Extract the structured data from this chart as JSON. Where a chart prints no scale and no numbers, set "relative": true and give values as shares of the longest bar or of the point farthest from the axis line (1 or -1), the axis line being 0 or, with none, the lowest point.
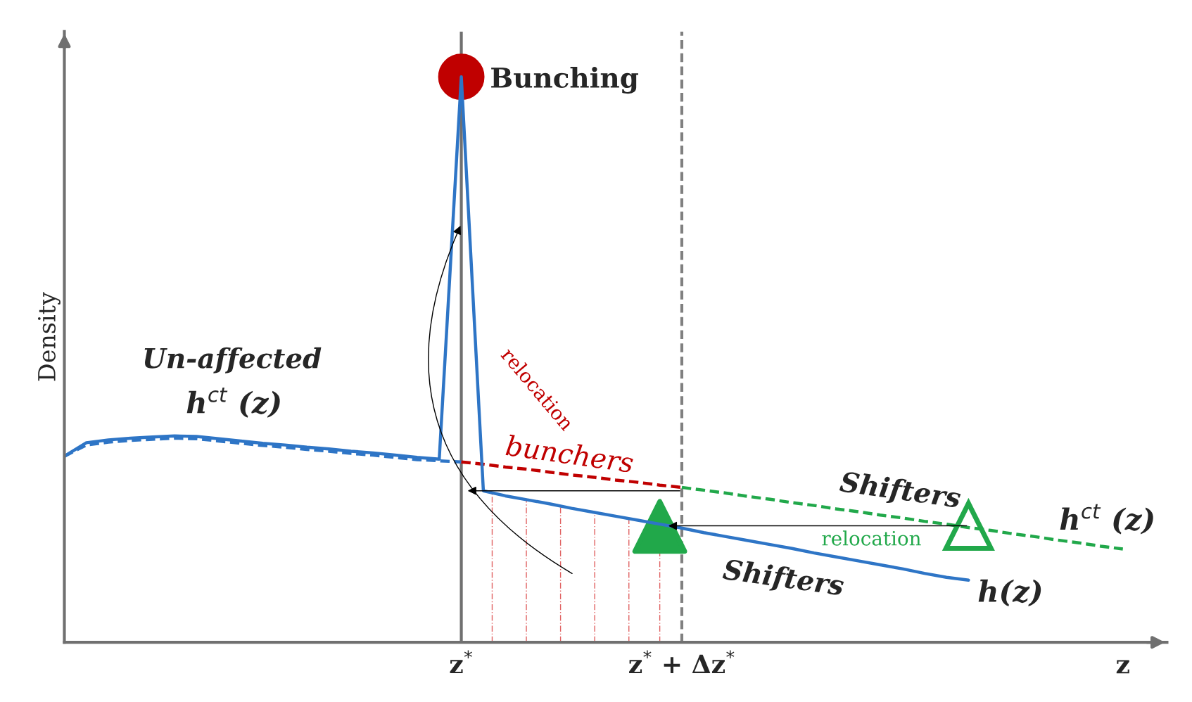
{
  "chart_data": {
    "type": "line",
    "relative": true,
    "ylabel": "Density",
    "categories": [
      null,
      null,
      null,
      null,
      null,
      null,
      null,
      null,
      null,
      null,
      null,
      null,
      null,
      null,
      null,
      null,
      null,
      null,
      "z$^{*}$",
      null,
      null,
      null,
      null,
      null,
      null,
      null,
      null,
      null,
      "z$^{*}$ + Δz$^{*}$",
      null,
      null,
      null,
      null,
      null,
      null,
      null,
      null,
      null,
      null,
      null,
      null,
      null,
      null,
      null,
      null,
      null,
      null,
      null,
      "z",
      null
    ],
    "grid": false,
    "legend": false,
    "series": [
      {
        "color": "#2e75c6",
        "line_style": "dashed",
        "values": [
          0.329,
          0.349,
          0.354,
          0.357,
          0.359,
          0.361,
          0.36,
          0.356,
          0.352,
          0.348,
          0.345,
          0.341,
          0.338,
          0.334,
          0.331,
          0.327,
          0.323,
          0.321,
          0.319,
          null,
          null,
          null,
          null,
          null,
          null,
          null,
          null,
          null,
          null,
          null,
          null,
          null,
          null,
          null,
          null,
          null,
          null,
          null,
          null,
          null,
          null,
          null,
          null,
          null,
          null,
          null,
          null,
          null,
          null,
          null
        ]
      },
      {
        "color": "#c00000",
        "line_style": "dashed",
        "values": [
          null,
          null,
          null,
          null,
          null,
          null,
          null,
          null,
          null,
          null,
          null,
          null,
          null,
          null,
          null,
          null,
          null,
          null,
          0.319,
          0.315,
          0.31,
          0.306,
          0.301,
          0.296,
          0.292,
          0.287,
          0.283,
          0.278,
          0.274,
          null,
          null,
          null,
          null,
          null,
          null,
          null,
          null,
          null,
          null,
          null,
          null,
          null,
          null,
          null,
          null,
          null,
          null,
          null,
          null,
          null
        ]
      },
      {
        "color": "#21a84a",
        "line_style": "dashed",
        "values": [
          null,
          null,
          null,
          null,
          null,
          null,
          null,
          null,
          null,
          null,
          null,
          null,
          null,
          null,
          null,
          null,
          null,
          null,
          null,
          null,
          null,
          null,
          null,
          null,
          null,
          null,
          null,
          null,
          0.274,
          0.269,
          0.264,
          0.258,
          0.253,
          0.247,
          0.242,
          0.236,
          0.231,
          0.225,
          0.22,
          0.214,
          0.209,
          0.203,
          0.198,
          0.192,
          0.187,
          0.181,
          0.176,
          0.17,
          0.165,
          null
        ]
      },
      {
        "color": "#2e75c6",
        "line_style": "solid",
        "values": [
          0.329,
          0.353,
          0.358,
          0.361,
          0.363,
          0.365,
          0.364,
          0.36,
          0.356,
          0.352,
          0.349,
          0.345,
          0.342,
          0.338,
          0.335,
          0.331,
          0.327,
          0.324,
          1.0,
          0.268,
          0.259,
          0.252,
          0.245,
          0.237,
          0.23,
          0.223,
          0.216,
          0.209,
          0.202,
          0.194,
          0.187,
          0.18,
          0.173,
          0.166,
          0.158,
          0.151,
          0.144,
          0.137,
          0.13,
          0.122,
          0.115,
          0.11,
          null,
          null,
          null,
          null,
          null,
          null,
          null,
          null
        ]
      },
      {
        "type": "scatter",
        "color": "#c00000",
        "marker": "circle",
        "values": [
          null,
          null,
          null,
          null,
          null,
          null,
          null,
          null,
          null,
          null,
          null,
          null,
          null,
          null,
          null,
          null,
          null,
          null,
          1.0,
          null,
          null,
          null,
          null,
          null,
          null,
          null,
          null,
          null,
          null,
          null,
          null,
          null,
          null,
          null,
          null,
          null,
          null,
          null,
          null,
          null,
          null,
          null,
          null,
          null,
          null,
          null,
          null,
          null,
          null,
          null
        ]
      },
      {
        "type": "scatter",
        "color": "#21a84a",
        "marker": "triangle",
        "values": [
          null,
          null,
          null,
          null,
          null,
          null,
          null,
          null,
          null,
          null,
          null,
          null,
          null,
          null,
          null,
          null,
          null,
          null,
          null,
          null,
          null,
          null,
          null,
          null,
          null,
          null,
          null,
          0.205,
          null,
          null,
          null,
          null,
          null,
          null,
          null,
          null,
          null,
          null,
          null,
          null,
          null,
          null,
          null,
          null,
          null,
          null,
          null,
          null,
          null,
          null
        ]
      },
      {
        "color": "#21a84a",
        "marker": "triangle",
        "values": [
          null,
          null,
          null,
          null,
          null,
          null,
          null,
          null,
          null,
          null,
          null,
          null,
          null,
          null,
          null,
          null,
          null,
          null,
          null,
          null,
          null,
          null,
          null,
          null,
          null,
          null,
          null,
          null,
          null,
          null,
          null,
          null,
          null,
          null,
          null,
          null,
          null,
          null,
          null,
          null,
          null,
          0.206,
          null,
          null,
          null,
          null,
          null,
          null,
          null,
          null
        ]
      }
    ],
    "ref_lines": [
      {
        "axis": "x",
        "value": "z$^{*}$",
        "color": "#707070",
        "line_style": "solid"
      },
      {
        "axis": "x",
        "value": "z$^{*}$ + Δz$^{*}$",
        "color": "#808080",
        "line_style": "dashed"
      }
    ],
    "annotations": [
      "Bunching",
      "Un-affected",
      "h$^{ct}$ (z)",
      "relocation",
      "bunchers",
      "Shifters",
      "h$^{ct}$ (z)",
      "relocation",
      "Shifters",
      "h(z)"
    ]
  }
}
